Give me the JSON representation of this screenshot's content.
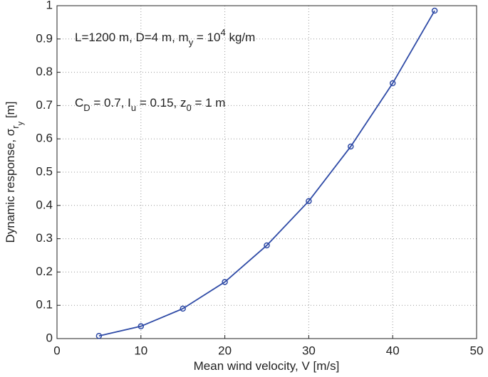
{
  "chart_data": {
    "type": "line",
    "xlabel": "Mean wind velocity, V [m/s]",
    "ylabel": [
      "Dynamic response, σ",
      "r",
      "y",
      " [m]"
    ],
    "annotations": [
      [
        "L=1200 m, D=4 m, m",
        "y",
        " = 10",
        "4",
        " kg/m"
      ],
      [
        "C",
        "D",
        " = 0.7, I",
        "u",
        " = 0.15,  z",
        "0",
        " = 1 m"
      ]
    ],
    "series": [
      {
        "color": "#2e4aa6",
        "x": [
          5,
          10,
          15,
          20,
          25,
          30,
          35,
          40,
          45
        ],
        "values": [
          0.008,
          0.037,
          0.09,
          0.17,
          0.28,
          0.413,
          0.577,
          0.767,
          0.985
        ]
      }
    ],
    "xlim": [
      0,
      50
    ],
    "xticks": [
      0,
      10,
      20,
      30,
      40,
      50
    ],
    "ylim": [
      0,
      1
    ],
    "yticks": [
      0,
      0.1,
      0.2,
      0.3,
      0.4,
      0.5,
      0.6,
      0.7,
      0.8,
      0.9,
      1
    ],
    "grid": true
  }
}
